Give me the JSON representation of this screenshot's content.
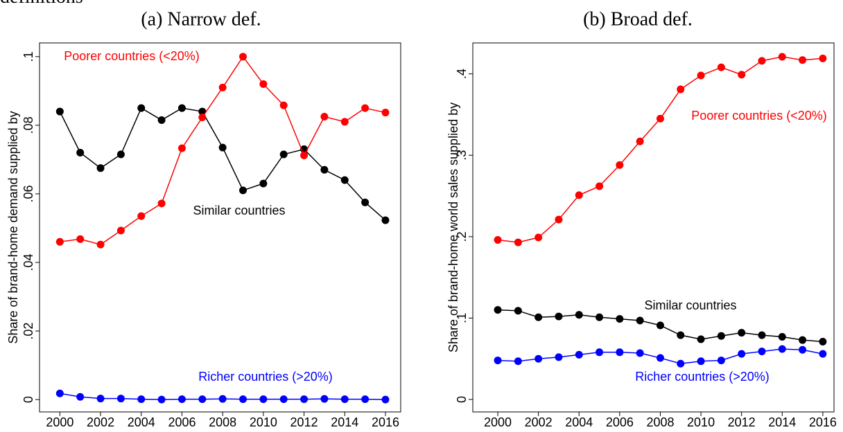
{
  "header": "definitions",
  "chart_data": [
    {
      "type": "line",
      "title": "(a) Narrow def.",
      "y_label": "Share of brand-home demand supplied by",
      "x": [
        2000,
        2001,
        2002,
        2003,
        2004,
        2005,
        2006,
        2007,
        2008,
        2009,
        2010,
        2011,
        2012,
        2013,
        2014,
        2015,
        2016
      ],
      "xlim": [
        1999,
        2016.75
      ],
      "xticks": [
        2000,
        2002,
        2004,
        2006,
        2008,
        2010,
        2012,
        2014,
        2016
      ],
      "ylim": [
        -0.0036,
        0.104
      ],
      "yticks": [
        0,
        {
          "value": 0.02,
          "label": ".02"
        },
        {
          "value": 0.04,
          "label": ".04"
        },
        {
          "value": 0.06,
          "label": ".06"
        },
        {
          "value": 0.08,
          "label": ".08"
        },
        {
          "value": 0.1,
          "label": ".1"
        }
      ],
      "series": [
        {
          "name": "Similar countries",
          "color": "#000000",
          "values": [
            0.084,
            0.072,
            0.0675,
            0.0715,
            0.085,
            0.0815,
            0.085,
            0.084,
            0.0735,
            0.061,
            0.063,
            0.0715,
            0.073,
            0.067,
            0.064,
            0.0575,
            0.0523
          ]
        },
        {
          "name": "Poorer countries (<20%)",
          "color": "#ff0000",
          "values": [
            0.046,
            0.0468,
            0.0452,
            0.0493,
            0.0535,
            0.0572,
            0.0733,
            0.0823,
            0.091,
            0.1,
            0.092,
            0.0858,
            0.0712,
            0.0825,
            0.081,
            0.085,
            0.0837
          ]
        },
        {
          "name": "Richer countries (>20%)",
          "color": "#0000ff",
          "values": [
            0.0018,
            0.0008,
            0.0003,
            0.0003,
            0.0001,
            0,
            0.0001,
            0.0001,
            0.0002,
            0.0001,
            0.0001,
            0.0001,
            0.0001,
            0.0002,
            0.0001,
            0.0001,
            0
          ]
        }
      ]
    },
    {
      "type": "line",
      "title": "(b) Broad def.",
      "y_label": "Share of brand-home world sales supplied by",
      "x": [
        2000,
        2001,
        2002,
        2003,
        2004,
        2005,
        2006,
        2007,
        2008,
        2009,
        2010,
        2011,
        2012,
        2013,
        2014,
        2015,
        2016
      ],
      "xlim": [
        1998.77,
        2016.55
      ],
      "xticks": [
        2000,
        2002,
        2004,
        2006,
        2008,
        2010,
        2012,
        2014,
        2016
      ],
      "ylim": [
        -0.0153,
        0.438
      ],
      "yticks": [
        0,
        {
          "value": 0.1,
          "label": ".1"
        },
        {
          "value": 0.2,
          "label": ".2"
        },
        {
          "value": 0.3,
          "label": ".3"
        },
        {
          "value": 0.4,
          "label": ".4"
        }
      ],
      "series": [
        {
          "name": "Similar countries",
          "color": "#000000",
          "values": [
            0.11,
            0.109,
            0.101,
            0.102,
            0.104,
            0.101,
            0.099,
            0.097,
            0.091,
            0.079,
            0.074,
            0.078,
            0.082,
            0.079,
            0.077,
            0.073,
            0.071
          ]
        },
        {
          "name": "Poorer countries (<20%)",
          "color": "#ff0000",
          "values": [
            0.196,
            0.193,
            0.199,
            0.221,
            0.251,
            0.262,
            0.288,
            0.317,
            0.345,
            0.381,
            0.398,
            0.408,
            0.399,
            0.416,
            0.421,
            0.417,
            0.419
          ]
        },
        {
          "name": "Richer countries (>20%)",
          "color": "#0000ff",
          "values": [
            0.048,
            0.047,
            0.05,
            0.052,
            0.055,
            0.058,
            0.058,
            0.057,
            0.051,
            0.044,
            0.047,
            0.048,
            0.056,
            0.059,
            0.062,
            0.061,
            0.056
          ]
        }
      ]
    }
  ]
}
